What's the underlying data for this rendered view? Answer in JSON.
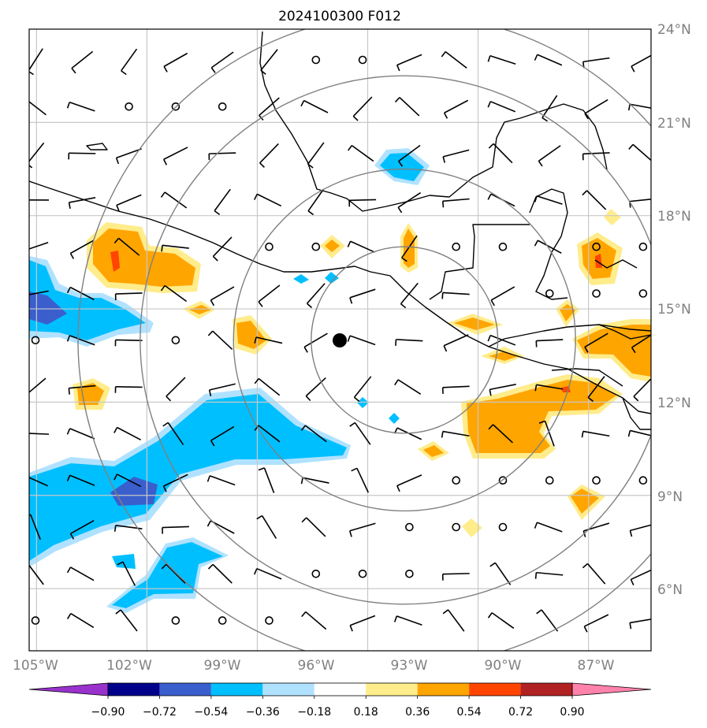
{
  "title": "2024100300 F012",
  "map": {
    "lon_range": [
      -105.0,
      -88.0
    ],
    "lat_range": [
      4.0,
      24.0
    ],
    "lat_ticks": [
      "24°N",
      "21°N",
      "18°N",
      "15°N",
      "12°N",
      "9°N",
      "6°N"
    ],
    "lon_ticks": [
      "105°W",
      "102°W",
      "99°W",
      "96°W",
      "93°W",
      "90°W",
      "87°W"
    ],
    "storm_center": {
      "lon": -95.0,
      "lat": 14.0
    },
    "range_rings_deg": [
      3,
      5.5,
      8.5,
      10.5
    ],
    "colors": {
      "grid": "#c8c8c8",
      "rings": "#808080",
      "coast": "#000000"
    }
  },
  "colorbar": {
    "labels": [
      "−0.90",
      "−0.72",
      "−0.54",
      "−0.36",
      "−0.18",
      "0.18",
      "0.36",
      "0.54",
      "0.72",
      "0.90"
    ],
    "colors": [
      "#9932cc",
      "#00008b",
      "#3a5fcd",
      "#00bfff",
      "#b0e2ff",
      "#ffffff",
      "#ffec8b",
      "#ffa500",
      "#ff4500",
      "#b22222",
      "#ff82ab"
    ]
  }
}
